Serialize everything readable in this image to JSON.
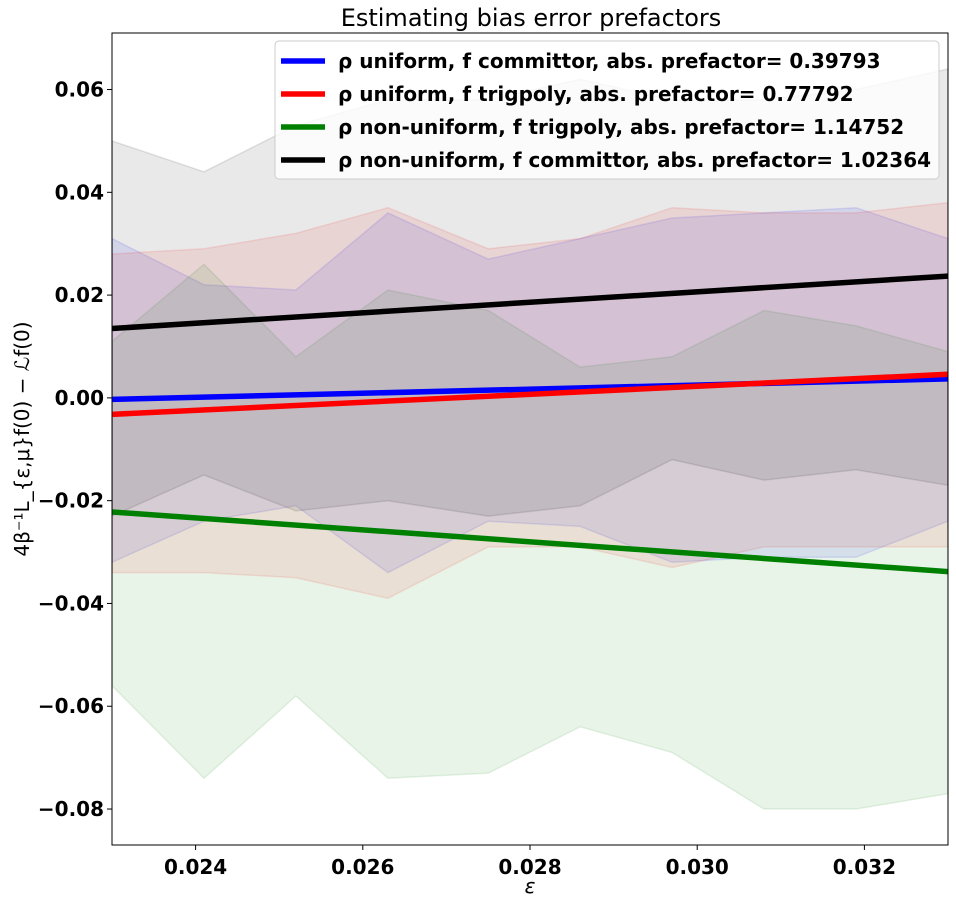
{
  "chart_data": {
    "type": "line",
    "title": "Estimating bias error prefactors",
    "xlabel": "ε",
    "ylabel": "4β⁻¹L_{ε,μ}f(0) − ℒf(0)",
    "xlim": [
      0.023,
      0.033
    ],
    "ylim": [
      -0.087,
      0.071
    ],
    "x_ticks": [
      0.024,
      0.026,
      0.028,
      0.03,
      0.032
    ],
    "x_tick_labels": [
      "0.024",
      "0.026",
      "0.028",
      "0.030",
      "0.032"
    ],
    "y_ticks": [
      -0.08,
      -0.06,
      -0.04,
      -0.02,
      0.0,
      0.02,
      0.04,
      0.06
    ],
    "y_tick_labels": [
      "−0.08",
      "−0.06",
      "−0.04",
      "−0.02",
      "0.00",
      "0.02",
      "0.04",
      "0.06"
    ],
    "grid": false,
    "legend_position": "top-right",
    "band_x": [
      0.023,
      0.0241,
      0.0252,
      0.0263,
      0.0275,
      0.0286,
      0.0297,
      0.0308,
      0.0319,
      0.033
    ],
    "series": [
      {
        "name": "ρ uniform, f committor, abs. prefactor= 0.39793",
        "legend_label": "ρ uniform, f committor, abs. prefactor= 0.39793",
        "color": "#0000ff",
        "line_x": [
          0.023,
          0.033
        ],
        "line_y": [
          -0.0003,
          0.0037
        ],
        "band_upper": [
          0.031,
          0.022,
          0.021,
          0.036,
          0.027,
          0.031,
          0.035,
          0.036,
          0.037,
          0.031
        ],
        "band_lower": [
          -0.032,
          -0.024,
          -0.021,
          -0.034,
          -0.024,
          -0.025,
          -0.032,
          -0.031,
          -0.031,
          -0.024
        ]
      },
      {
        "name": "ρ uniform, f trigpoly, abs. prefactor= 0.77792",
        "legend_label": "ρ uniform, f trigpoly, abs. prefactor= 0.77792",
        "color": "#ff0000",
        "line_x": [
          0.023,
          0.033
        ],
        "line_y": [
          -0.0032,
          0.0046
        ],
        "band_upper": [
          0.028,
          0.029,
          0.032,
          0.037,
          0.029,
          0.031,
          0.037,
          0.036,
          0.036,
          0.038
        ],
        "band_lower": [
          -0.034,
          -0.034,
          -0.035,
          -0.039,
          -0.029,
          -0.029,
          -0.033,
          -0.029,
          -0.029,
          -0.029
        ]
      },
      {
        "name": "ρ non-uniform, f trigpoly, abs. prefactor= 1.14752",
        "legend_label": "ρ non-uniform, f trigpoly, abs. prefactor= 1.14752",
        "color": "#008000",
        "line_x": [
          0.023,
          0.033
        ],
        "line_y": [
          -0.0222,
          -0.0338
        ],
        "band_upper": [
          0.011,
          0.026,
          0.008,
          0.021,
          0.017,
          0.006,
          0.008,
          0.017,
          0.014,
          0.009
        ],
        "band_lower": [
          -0.056,
          -0.074,
          -0.058,
          -0.074,
          -0.073,
          -0.064,
          -0.069,
          -0.08,
          -0.08,
          -0.077
        ]
      },
      {
        "name": "ρ non-uniform, f committor, abs. prefactor= 1.02364",
        "legend_label": "ρ non-uniform, f committor, abs. prefactor= 1.02364",
        "color": "#000000",
        "line_x": [
          0.023,
          0.033
        ],
        "line_y": [
          0.0135,
          0.0237
        ],
        "band_upper": [
          0.05,
          0.044,
          0.053,
          0.058,
          0.058,
          0.062,
          0.058,
          0.058,
          0.06,
          0.064
        ],
        "band_lower": [
          -0.023,
          -0.015,
          -0.022,
          -0.02,
          -0.023,
          -0.021,
          -0.012,
          -0.016,
          -0.014,
          -0.017
        ]
      }
    ]
  }
}
